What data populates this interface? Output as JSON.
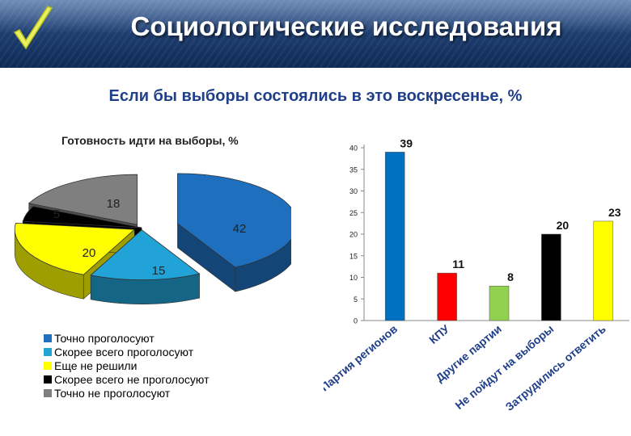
{
  "header": {
    "title": "Социологические исследования",
    "check_icon": "checkmark-icon"
  },
  "question": "Если бы выборы состоялись в это воскресенье, %",
  "pie": {
    "title": "Готовность идти на выборы, %"
  },
  "chart_data": [
    {
      "type": "pie",
      "title": "Готовность идти на выборы, %",
      "style": "3d-exploded",
      "legend_placement": "bottom-left",
      "slices": [
        {
          "label": "Точно проголосуют",
          "value": 42,
          "color": "#1f6fbf"
        },
        {
          "label": "Скорее всего проголосуют",
          "value": 15,
          "color": "#22a3d8"
        },
        {
          "label": "Еще не решили",
          "value": 20,
          "color": "#ffff00"
        },
        {
          "label": "Скорее всего не проголосуют",
          "value": 5,
          "color": "#000000"
        },
        {
          "label": "Точно не проголосуют",
          "value": 18,
          "color": "#7f7f7f"
        }
      ]
    },
    {
      "type": "bar",
      "categories": [
        "Партия регионов",
        "КПУ",
        "Другие партии",
        "Не пойдут на выборы",
        "Затрудились ответить"
      ],
      "values": [
        39,
        11,
        8,
        20,
        23
      ],
      "colors": [
        "#0070c0",
        "#ff0000",
        "#92d050",
        "#000000",
        "#ffff00"
      ],
      "ylim": [
        0,
        40
      ],
      "yticks": [
        0,
        5,
        10,
        15,
        20,
        25,
        30,
        35,
        40
      ],
      "grid": false,
      "data_labels": true
    }
  ]
}
